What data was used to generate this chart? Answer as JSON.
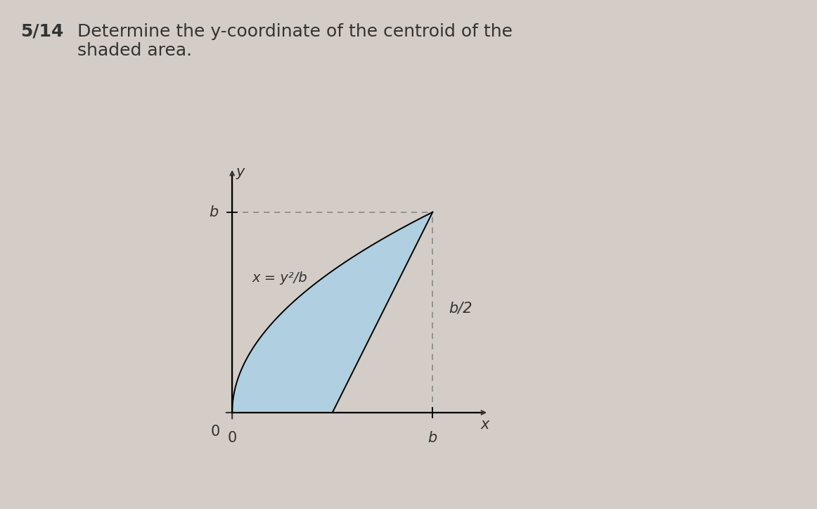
{
  "title_bold": "5/14",
  "title_text": "Determine the y-coordinate of the centroid of the\nshaded area.",
  "background_color": "#d4cdc7",
  "plot_bg_color": "#d4cdc7",
  "shaded_color": "#b0cfe0",
  "shaded_alpha": 1.0,
  "curve_label": "x = y²/b",
  "x_axis_label": "x",
  "y_axis_label": "y",
  "label_b_y": "b",
  "label_b_x": "b",
  "label_b2": "b/2",
  "label_0": "0",
  "label_0_x": "0",
  "dashed_color": "#888888",
  "axis_color": "#333333",
  "text_color": "#333333",
  "font_size_title": 18,
  "font_size_labels": 15,
  "font_size_annotations": 14,
  "b": 1.0
}
